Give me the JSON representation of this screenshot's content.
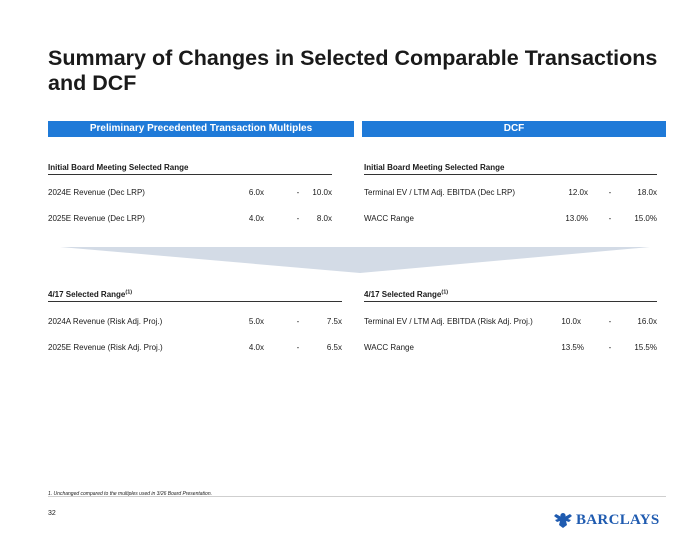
{
  "title": "Summary of Changes in Selected Comparable Transactions and DCF",
  "bands": {
    "left": "Preliminary Precedented Transaction Multiples",
    "right": "DCF"
  },
  "top_left": {
    "heading": "Initial Board Meeting Selected Range",
    "rows": [
      {
        "label": "2024E Revenue (Dec LRP)",
        "low": "6.0x",
        "dash": "-",
        "high": "10.0x"
      },
      {
        "label": "2025E Revenue (Dec LRP)",
        "low": "4.0x",
        "dash": "-",
        "high": "8.0x"
      }
    ]
  },
  "top_right": {
    "heading": "Initial Board Meeting Selected Range",
    "rows": [
      {
        "label": "Terminal EV / LTM Adj. EBITDA (Dec LRP)",
        "low": "12.0x",
        "dash": "-",
        "high": "18.0x"
      },
      {
        "label": "WACC Range",
        "low": "13.0%",
        "dash": "-",
        "high": "15.0%"
      }
    ]
  },
  "bottom_left": {
    "heading": "4/17 Selected Range",
    "heading_sup": "(1)",
    "rows": [
      {
        "label": "2024A Revenue (Risk Adj. Proj.)",
        "low": "5.0x",
        "dash": "-",
        "high": "7.5x"
      },
      {
        "label": "2025E Revenue (Risk Adj. Proj.)",
        "low": "4.0x",
        "dash": "-",
        "high": "6.5x"
      }
    ]
  },
  "bottom_right": {
    "heading": "4/17 Selected Range",
    "heading_sup": "(1)",
    "rows": [
      {
        "label": "Terminal EV / LTM Adj. EBITDA (Risk Adj. Proj.)",
        "low": "10.0x",
        "dash": "-",
        "high": "16.0x"
      },
      {
        "label": "WACC Range",
        "low": "13.5%",
        "dash": "-",
        "high": "15.5%"
      }
    ]
  },
  "footnote": "1. Unchanged compared to the multiples used in 3/26 Board Presentation.",
  "page_number": "32",
  "logo": {
    "text": "BARCLAYS",
    "icon": "eagle-icon",
    "color": "#1f5bb0"
  },
  "colors": {
    "band": "#1f7ad8",
    "arrow": "#d3dbe6"
  }
}
